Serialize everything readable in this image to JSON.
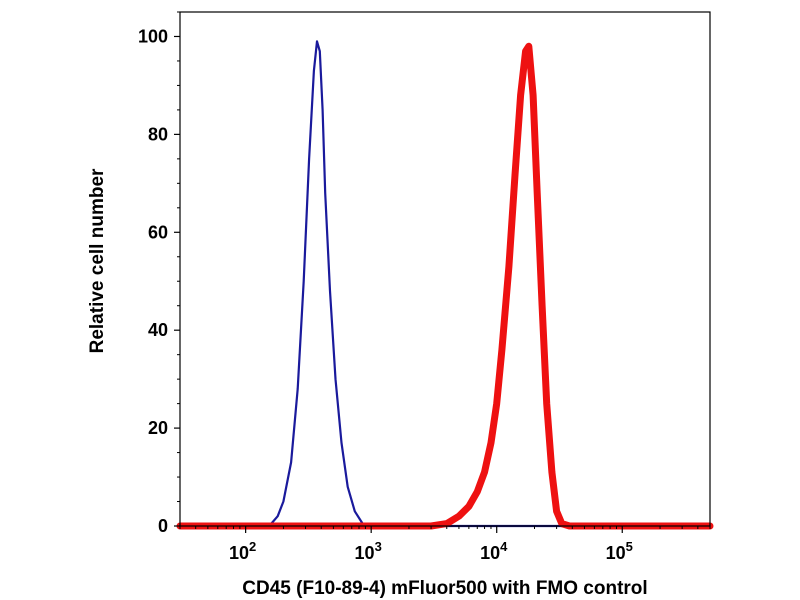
{
  "chart_data": {
    "type": "line",
    "title": "",
    "xlabel": "CD45 (F10-89-4) mFluor500 with FMO control",
    "ylabel": "Relative cell number",
    "x_scale": "log",
    "xlim": [
      30,
      500000
    ],
    "ylim": [
      0,
      105
    ],
    "x_ticks": [
      {
        "value": 100,
        "base": "10",
        "exp": "2"
      },
      {
        "value": 1000,
        "base": "10",
        "exp": "3"
      },
      {
        "value": 10000,
        "base": "10",
        "exp": "4"
      },
      {
        "value": 100000,
        "base": "10",
        "exp": "5"
      }
    ],
    "y_ticks": [
      {
        "value": 0,
        "label": "0"
      },
      {
        "value": 20,
        "label": "20"
      },
      {
        "value": 40,
        "label": "40"
      },
      {
        "value": 60,
        "label": "60"
      },
      {
        "value": 80,
        "label": "80"
      },
      {
        "value": 100,
        "label": "100"
      }
    ],
    "grid": false,
    "series": [
      {
        "name": "FMO control",
        "color": "#1a1a9c",
        "style": "thin",
        "x": [
          30,
          140,
          160,
          180,
          200,
          230,
          260,
          290,
          320,
          350,
          370,
          390,
          410,
          430,
          470,
          520,
          580,
          650,
          740,
          850,
          950,
          1100,
          500000
        ],
        "y": [
          0,
          0,
          0.5,
          2,
          5,
          13,
          28,
          50,
          75,
          93,
          99,
          97,
          85,
          68,
          48,
          30,
          17,
          8,
          3,
          0.6,
          0,
          0,
          0
        ]
      },
      {
        "name": "CD45 (F10-89-4) mFluor500",
        "color": "#ee1111",
        "style": "thick",
        "x": [
          30,
          3000,
          4000,
          5000,
          6000,
          7000,
          8000,
          9000,
          10000,
          11000,
          12500,
          14000,
          15500,
          17000,
          18000,
          19500,
          21000,
          23000,
          25000,
          27500,
          30000,
          33000,
          38000,
          500000
        ],
        "y": [
          0,
          0,
          0.5,
          2,
          4,
          7,
          11,
          17,
          25,
          36,
          53,
          72,
          88,
          97,
          98,
          88,
          68,
          45,
          25,
          11,
          3,
          0.5,
          0,
          0
        ]
      }
    ],
    "annotations": []
  }
}
